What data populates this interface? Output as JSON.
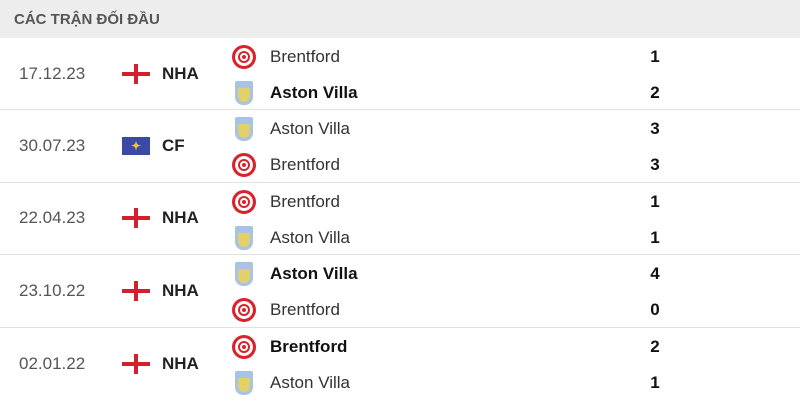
{
  "title": "CÁC TRẬN ĐỐI ĐẦU",
  "matches": [
    {
      "date": "17.12.23",
      "competition": "NHA",
      "flag": "england-flag",
      "home": {
        "name": "Brentford",
        "crest": "brentford",
        "score": "1",
        "winner": false
      },
      "away": {
        "name": "Aston Villa",
        "crest": "villa",
        "score": "2",
        "winner": true
      }
    },
    {
      "date": "30.07.23",
      "competition": "CF",
      "flag": "world-flag",
      "home": {
        "name": "Aston Villa",
        "crest": "villa",
        "score": "3",
        "winner": false
      },
      "away": {
        "name": "Brentford",
        "crest": "brentford",
        "score": "3",
        "winner": false
      }
    },
    {
      "date": "22.04.23",
      "competition": "NHA",
      "flag": "england-flag",
      "home": {
        "name": "Brentford",
        "crest": "brentford",
        "score": "1",
        "winner": false
      },
      "away": {
        "name": "Aston Villa",
        "crest": "villa",
        "score": "1",
        "winner": false
      }
    },
    {
      "date": "23.10.22",
      "competition": "NHA",
      "flag": "england-flag",
      "home": {
        "name": "Aston Villa",
        "crest": "villa",
        "score": "4",
        "winner": true
      },
      "away": {
        "name": "Brentford",
        "crest": "brentford",
        "score": "0",
        "winner": false
      }
    },
    {
      "date": "02.01.22",
      "competition": "NHA",
      "flag": "england-flag",
      "home": {
        "name": "Brentford",
        "crest": "brentford",
        "score": "2",
        "winner": true
      },
      "away": {
        "name": "Aston Villa",
        "crest": "villa",
        "score": "1",
        "winner": false
      }
    }
  ]
}
